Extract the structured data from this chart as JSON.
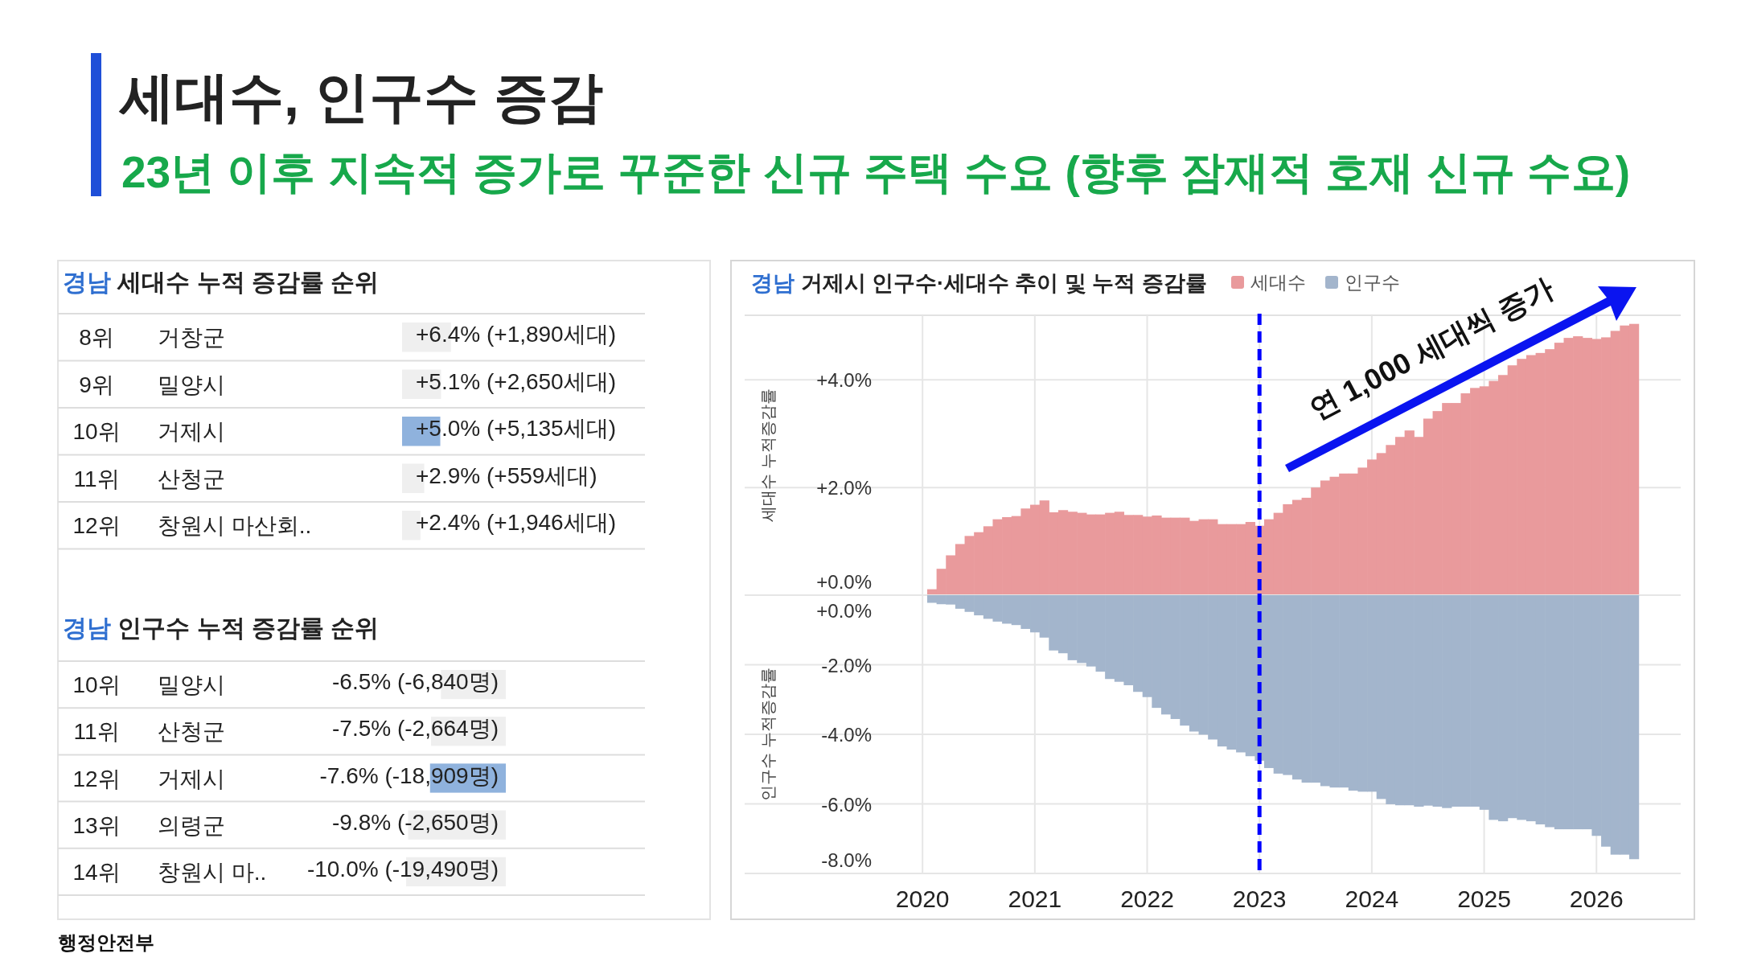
{
  "chart_data": [
    {
      "type": "other",
      "title": "세대수, 인구수 증감",
      "subtitle": "23년 이후 지속적 증가로 꾸준한 신규 주택 수요 (향후 잠재적 호재 신규 수요)",
      "annotations": [
        "행정안전부"
      ]
    },
    {
      "type": "bar",
      "orientation": "horizontal",
      "title": "경남 세대수 누적 증감률 순위",
      "categories": [
        "거창군",
        "밀양시",
        "거제시",
        "산청군",
        "창원시 마산회.."
      ],
      "values": [
        6.4,
        5.1,
        5.0,
        2.9,
        2.4
      ],
      "colors": [
        "#efefef",
        "#efefef",
        "#8fb2dd",
        "#efefef",
        "#efefef"
      ],
      "value_labels": [
        "+6.4% (+1,890세대)",
        "+5.1% (+2,650세대)",
        "+5.0% (+5,135세대)",
        "+2.9% (+559세대)",
        "+2.4% (+1,946세대)"
      ],
      "annotations": [
        "8위",
        "9위",
        "10위",
        "11위",
        "12위"
      ]
    },
    {
      "type": "bar",
      "orientation": "horizontal",
      "title": "경남 인구수 누적 증감률 순위",
      "categories": [
        "밀양시",
        "산청군",
        "거제시",
        "의령군",
        "창원시 마.."
      ],
      "values": [
        -6.5,
        -7.5,
        -7.6,
        -9.8,
        -10.0
      ],
      "colors": [
        "#efefef",
        "#efefef",
        "#8fb2dd",
        "#efefef",
        "#efefef"
      ],
      "value_labels": [
        "-6.5% (-6,840명)",
        "-7.5% (-2,664명)",
        "-7.6% (-18,909명)",
        "-9.8% (-2,650명)",
        "-10.0% (-19,490명)"
      ],
      "annotations": [
        "10위",
        "11위",
        "12위",
        "13위",
        "14위"
      ]
    },
    {
      "type": "bar",
      "title": "경남 거제시 인구수·세대수 추이 및 누적 증감률",
      "ylabel": "세대수 누적증감률",
      "legend": "top",
      "grid": true,
      "tick_labels": "y",
      "xlim": [
        "2018-06",
        "2026-10"
      ],
      "xticks": [
        "2020",
        "2021",
        "2022",
        "2023",
        "2024",
        "2025",
        "2026"
      ],
      "ylim": [
        0,
        5.2
      ],
      "yticks": [
        {
          "value": 0,
          "label": "+0.0%"
        },
        {
          "value": 2,
          "label": "+2.0%"
        },
        {
          "value": 4,
          "label": "+4.0%"
        }
      ],
      "ref_lines": [
        {
          "axis": "x",
          "value": "2023-01",
          "color": "#0000ff",
          "line_style": "dashed"
        }
      ],
      "annotations": [
        "연 1,000 세대씩 증가"
      ],
      "x": [
        "2020-02",
        "2020-03",
        "2020-04",
        "2020-05",
        "2020-06",
        "2020-07",
        "2020-08",
        "2020-09",
        "2020-10",
        "2020-11",
        "2020-12",
        "2021-01",
        "2021-02",
        "2021-03",
        "2021-04",
        "2021-05",
        "2021-06",
        "2021-07",
        "2021-08",
        "2021-09",
        "2021-10",
        "2021-11",
        "2021-12",
        "2022-01",
        "2022-02",
        "2022-03",
        "2022-04",
        "2022-05",
        "2022-06",
        "2022-07",
        "2022-08",
        "2022-09",
        "2022-10",
        "2022-11",
        "2022-12",
        "2023-01",
        "2023-02",
        "2023-03",
        "2023-04",
        "2023-05",
        "2023-06",
        "2023-07",
        "2023-08",
        "2023-09",
        "2023-10",
        "2023-11",
        "2023-12",
        "2024-01",
        "2024-02",
        "2024-03",
        "2024-04",
        "2024-05",
        "2024-06",
        "2024-07",
        "2024-08",
        "2024-09",
        "2024-10",
        "2024-11",
        "2024-12",
        "2025-01",
        "2025-02",
        "2025-03",
        "2025-04",
        "2025-05",
        "2025-06",
        "2025-07",
        "2025-08",
        "2025-09",
        "2025-10",
        "2025-11",
        "2025-12",
        "2026-01",
        "2026-02",
        "2026-03",
        "2026-04",
        "2026-05"
      ],
      "series": [
        {
          "name": "세대수",
          "color": "#e99a9c",
          "values": [
            0.11,
            0.49,
            0.74,
            0.95,
            1.1,
            1.17,
            1.28,
            1.41,
            1.45,
            1.47,
            1.61,
            1.68,
            1.76,
            1.54,
            1.58,
            1.55,
            1.53,
            1.5,
            1.5,
            1.53,
            1.55,
            1.49,
            1.49,
            1.46,
            1.48,
            1.44,
            1.44,
            1.44,
            1.38,
            1.41,
            1.41,
            1.32,
            1.32,
            1.32,
            1.36,
            1.29,
            1.41,
            1.53,
            1.69,
            1.77,
            1.81,
            2.0,
            2.13,
            2.2,
            2.26,
            2.26,
            2.37,
            2.52,
            2.64,
            2.79,
            2.94,
            3.06,
            2.94,
            3.28,
            3.42,
            3.57,
            3.57,
            3.75,
            3.85,
            3.88,
            3.98,
            4.09,
            4.27,
            4.39,
            4.46,
            4.5,
            4.57,
            4.69,
            4.78,
            4.81,
            4.78,
            4.76,
            4.79,
            4.91,
            5.01,
            5.04
          ]
        }
      ]
    },
    {
      "type": "bar",
      "ylabel": "인구수 누적증감률",
      "legend": "top",
      "grid": true,
      "xlim": [
        "2018-06",
        "2026-10"
      ],
      "xticks": [
        "2020",
        "2021",
        "2022",
        "2023",
        "2024",
        "2025",
        "2026"
      ],
      "ylim": [
        -8,
        0
      ],
      "yticks": [
        {
          "value": 0,
          "label": "+0.0%"
        },
        {
          "value": -2,
          "label": "-2.0%"
        },
        {
          "value": -4,
          "label": "-4.0%"
        },
        {
          "value": -6,
          "label": "-6.0%"
        },
        {
          "value": -8,
          "label": "-8.0%"
        }
      ],
      "ref_lines": [
        {
          "axis": "x",
          "value": "2023-01",
          "color": "#0000ff",
          "line_style": "dashed"
        }
      ],
      "x": [
        "2020-02",
        "2020-03",
        "2020-04",
        "2020-05",
        "2020-06",
        "2020-07",
        "2020-08",
        "2020-09",
        "2020-10",
        "2020-11",
        "2020-12",
        "2021-01",
        "2021-02",
        "2021-03",
        "2021-04",
        "2021-05",
        "2021-06",
        "2021-07",
        "2021-08",
        "2021-09",
        "2021-10",
        "2021-11",
        "2021-12",
        "2022-01",
        "2022-02",
        "2022-03",
        "2022-04",
        "2022-05",
        "2022-06",
        "2022-07",
        "2022-08",
        "2022-09",
        "2022-10",
        "2022-11",
        "2022-12",
        "2023-01",
        "2023-02",
        "2023-03",
        "2023-04",
        "2023-05",
        "2023-06",
        "2023-07",
        "2023-08",
        "2023-09",
        "2023-10",
        "2023-11",
        "2023-12",
        "2024-01",
        "2024-02",
        "2024-03",
        "2024-04",
        "2024-05",
        "2024-06",
        "2024-07",
        "2024-08",
        "2024-09",
        "2024-10",
        "2024-11",
        "2024-12",
        "2025-01",
        "2025-02",
        "2025-03",
        "2025-04",
        "2025-05",
        "2025-06",
        "2025-07",
        "2025-08",
        "2025-09",
        "2025-10",
        "2025-11",
        "2025-12",
        "2026-01",
        "2026-02",
        "2026-03",
        "2026-04",
        "2026-05"
      ],
      "series": [
        {
          "name": "인구수",
          "color": "#a3b5cc",
          "values": [
            -0.22,
            -0.26,
            -0.27,
            -0.39,
            -0.48,
            -0.58,
            -0.68,
            -0.76,
            -0.82,
            -0.86,
            -0.97,
            -1.07,
            -1.22,
            -1.59,
            -1.67,
            -1.87,
            -1.95,
            -2.05,
            -2.2,
            -2.41,
            -2.49,
            -2.59,
            -2.78,
            -2.93,
            -3.24,
            -3.43,
            -3.56,
            -3.75,
            -3.92,
            -4.01,
            -4.15,
            -4.35,
            -4.44,
            -4.52,
            -4.63,
            -4.76,
            -4.97,
            -5.13,
            -5.17,
            -5.3,
            -5.39,
            -5.39,
            -5.49,
            -5.53,
            -5.53,
            -5.62,
            -5.65,
            -5.65,
            -5.86,
            -6.01,
            -6.04,
            -6.04,
            -6.08,
            -6.05,
            -6.08,
            -6.12,
            -6.08,
            -6.08,
            -6.08,
            -6.17,
            -6.46,
            -6.5,
            -6.41,
            -6.46,
            -6.5,
            -6.59,
            -6.67,
            -6.73,
            -6.73,
            -6.73,
            -6.73,
            -6.92,
            -7.23,
            -7.46,
            -7.46,
            -7.59
          ]
        }
      ]
    }
  ]
}
